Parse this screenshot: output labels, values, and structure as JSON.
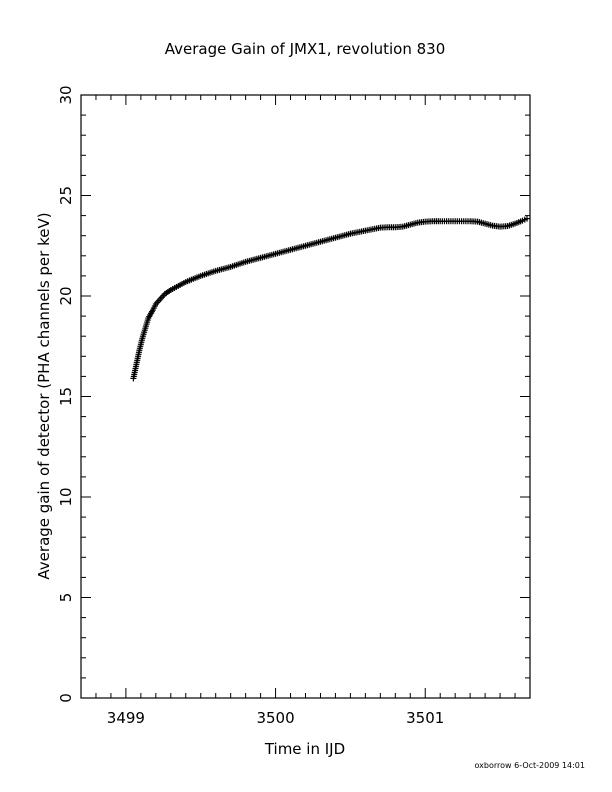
{
  "chart_data": {
    "type": "scatter",
    "title": "Average Gain of JMX1, revolution 830",
    "xlabel": "Time in IJD",
    "ylabel": "Average gain of detector (PHA channels per keV)",
    "xlim": [
      3498.7,
      3501.7
    ],
    "ylim": [
      0,
      30
    ],
    "xticks": [
      "3499",
      "3500",
      "3501"
    ],
    "yticks": [
      "0",
      "5",
      "10",
      "15",
      "20",
      "25",
      "30"
    ],
    "marker": "+",
    "marker_color": "#000000",
    "grid": false,
    "legend": "none",
    "series": [
      {
        "x": [
          3499.05,
          3499.07,
          3499.09,
          3499.11,
          3499.13,
          3499.15,
          3499.18,
          3499.2,
          3499.23,
          3499.26,
          3499.3,
          3499.35,
          3499.4,
          3499.45,
          3499.5,
          3499.6,
          3499.7,
          3499.8,
          3499.9,
          3500.0,
          3500.1,
          3500.2,
          3500.3,
          3500.4,
          3500.5,
          3500.6,
          3500.7,
          3500.75,
          3500.8,
          3500.85,
          3500.9,
          3500.95,
          3501.0,
          3501.05,
          3501.1,
          3501.2,
          3501.3,
          3501.35,
          3501.4,
          3501.45,
          3501.5,
          3501.55,
          3501.6,
          3501.65,
          3501.68
        ],
        "y": [
          15.9,
          16.6,
          17.3,
          17.9,
          18.4,
          18.9,
          19.3,
          19.6,
          19.85,
          20.1,
          20.3,
          20.5,
          20.7,
          20.85,
          21.0,
          21.25,
          21.45,
          21.7,
          21.9,
          22.1,
          22.3,
          22.5,
          22.7,
          22.9,
          23.1,
          23.25,
          23.4,
          23.42,
          23.42,
          23.45,
          23.55,
          23.65,
          23.7,
          23.72,
          23.72,
          23.72,
          23.72,
          23.7,
          23.6,
          23.5,
          23.45,
          23.48,
          23.6,
          23.75,
          23.85
        ]
      }
    ]
  },
  "footer": {
    "text": "oxborrow   6-Oct-2009 14:01"
  }
}
